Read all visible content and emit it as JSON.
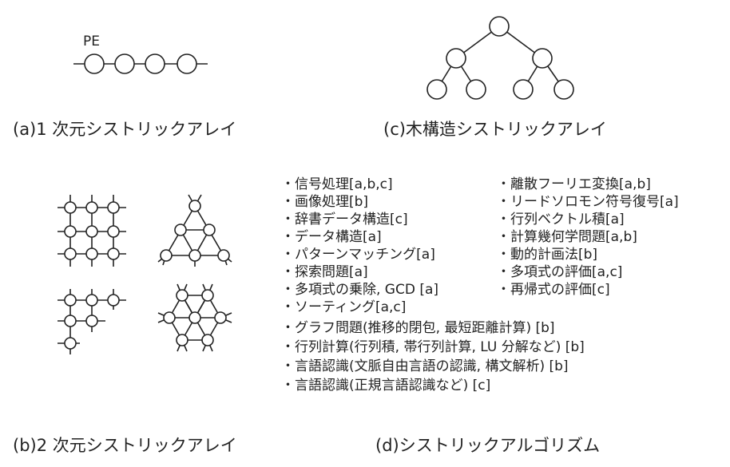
{
  "panels": {
    "a": {
      "caption": "(a)1 次元シストリックアレイ",
      "pe_label": "PE"
    },
    "b": {
      "caption": "(b)2 次元シストリックアレイ"
    },
    "c": {
      "caption": "(c)木構造シストリックアレイ"
    },
    "d": {
      "caption": "(d)シストリックアルゴリズム"
    }
  },
  "algorithms": {
    "left": [
      "・信号処理[a,b,c]",
      "・画像処理[b]",
      "・辞書データ構造[c]",
      "・データ構造[a]",
      "・パターンマッチング[a]",
      "・探索問題[a]",
      "・多項式の乗除, GCD [a]",
      "・ソーティング[a,c]",
      "・グラフ問題(推移的閉包, 最短距離計算) [b]",
      "・行列計算(行列積, 帯行列計算, LU 分解など) [b]",
      "・言語認識(文脈自由言語の認識, 構文解析) [b]",
      "・言語認識(正規言語認識など) [c]"
    ],
    "right": [
      "・離散フーリエ変換[a,b]",
      "・リードソロモン符号復号[a]",
      "・行列ベクトル積[a]",
      "・計算幾何学問題[a,b]",
      "・動的計画法[b]",
      "・多項式の評価[a,c]",
      "・再帰式の評価[c]"
    ]
  },
  "colors": {
    "line": "#222222",
    "background": "#ffffff"
  }
}
